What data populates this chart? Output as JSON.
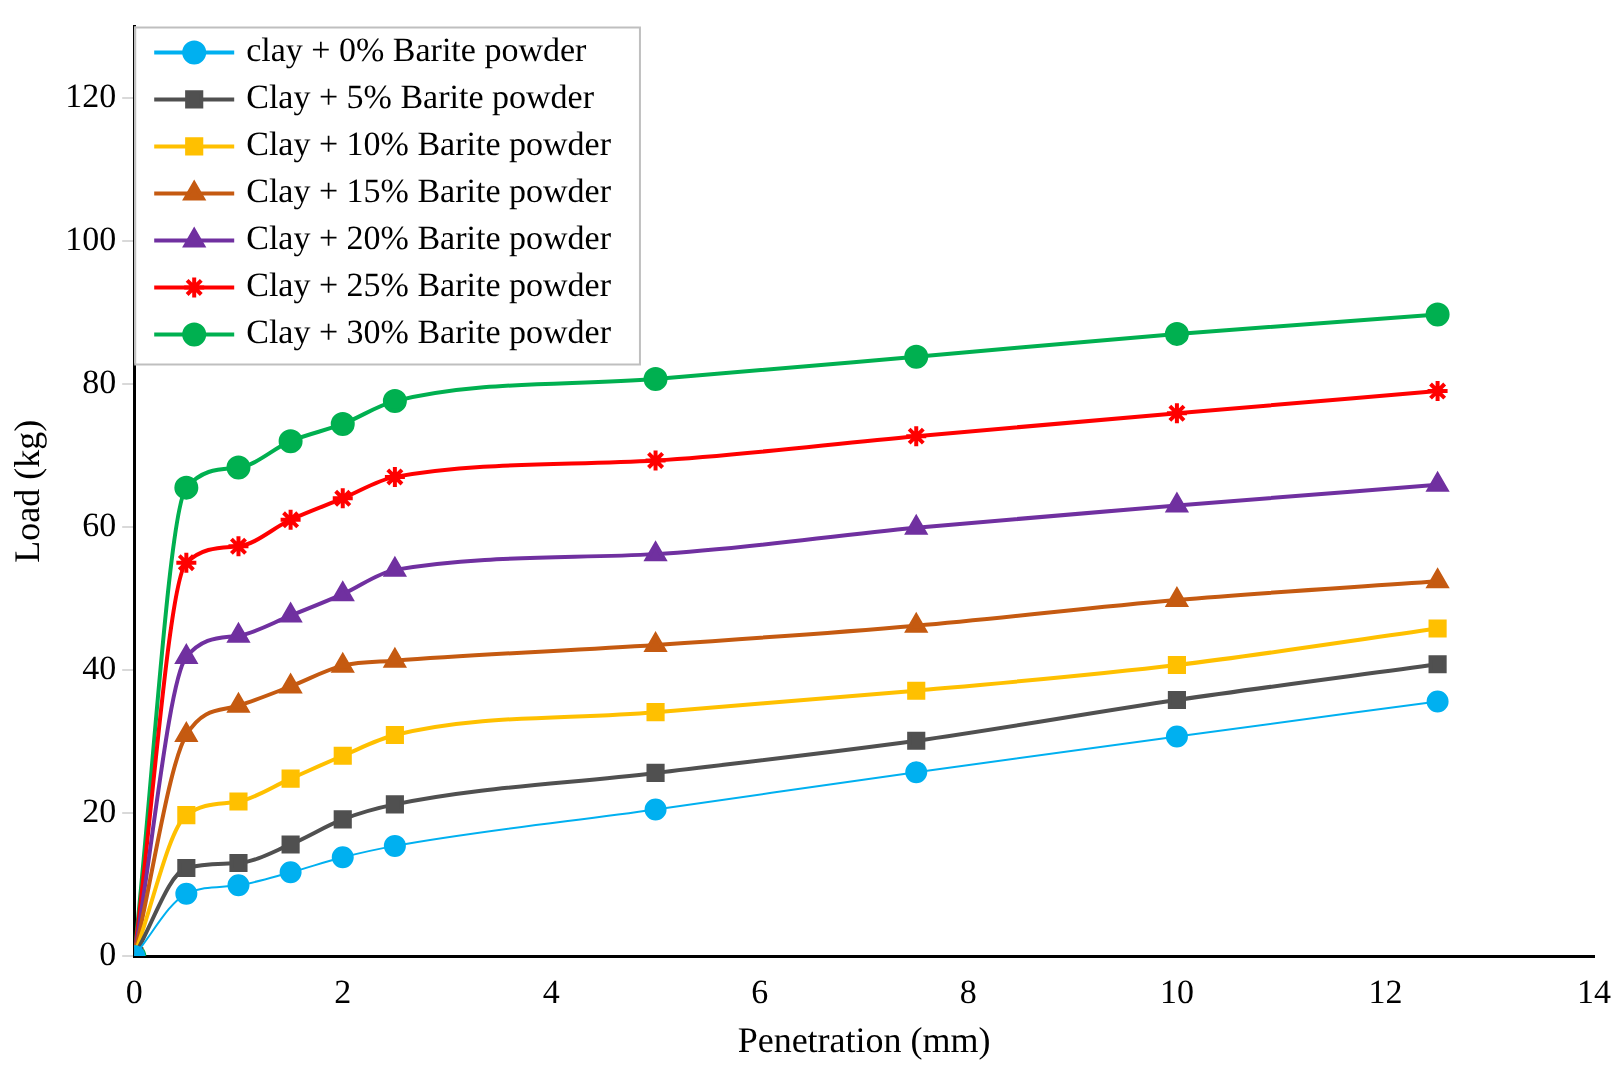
{
  "chart_data": {
    "type": "line",
    "xlabel": "Penetration (mm)",
    "ylabel": "Load (kg)",
    "x": [
      0,
      0.5,
      1,
      1.5,
      2,
      2.5,
      5,
      7.5,
      10,
      12.5
    ],
    "xlim": [
      0,
      14
    ],
    "xticks": [
      0,
      2,
      4,
      6,
      8,
      10,
      12,
      14
    ],
    "ylim": [
      0,
      130
    ],
    "yticks": [
      0,
      20,
      40,
      60,
      80,
      100,
      120
    ],
    "grid": false,
    "legend": "top left",
    "series": [
      {
        "name": "clay + 0% Barite powder",
        "color": "#00b0f0",
        "marker": "circle",
        "values": [
          0,
          8.7,
          9.9,
          11.7,
          13.8,
          15.4,
          20.5,
          25.7,
          30.7,
          35.6
        ]
      },
      {
        "name": "Clay + 5% Barite powder",
        "color": "#505050",
        "marker": "square",
        "values": [
          0,
          12.3,
          13,
          15.6,
          19.1,
          21.2,
          25.6,
          30.1,
          35.8,
          40.8
        ]
      },
      {
        "name": "Clay + 10% Barite powder",
        "color": "#ffc000",
        "marker": "square",
        "values": [
          0,
          19.7,
          21.6,
          24.8,
          28,
          30.9,
          34.1,
          37.1,
          40.7,
          45.8
        ]
      },
      {
        "name": "Clay + 15% Barite powder",
        "color": "#c55a11",
        "marker": "triangle",
        "values": [
          0,
          30.9,
          35,
          37.7,
          40.6,
          41.3,
          43.5,
          46.2,
          49.8,
          52.4
        ]
      },
      {
        "name": "Clay + 20% Barite powder",
        "color": "#7030a0",
        "marker": "triangle",
        "values": [
          0,
          41.8,
          44.8,
          47.6,
          50.6,
          54,
          56.2,
          59.9,
          63,
          65.9
        ]
      },
      {
        "name": "Clay + 25% Barite powder",
        "color": "#ff0000",
        "marker": "cross",
        "values": [
          0,
          55,
          57.3,
          61,
          64,
          67,
          69.3,
          72.7,
          75.9,
          79
        ]
      },
      {
        "name": "Clay + 30% Barite powder",
        "color": "#00b050",
        "marker": "circle",
        "values": [
          0,
          65.5,
          68.3,
          72,
          74.4,
          77.6,
          80.7,
          83.8,
          87,
          89.7
        ]
      }
    ]
  }
}
